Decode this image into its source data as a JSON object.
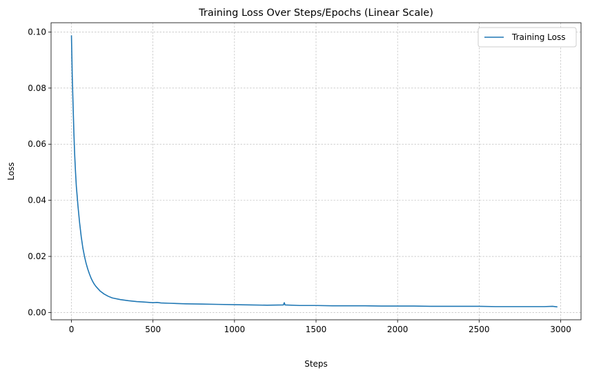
{
  "chart_data": {
    "type": "line",
    "title": "Training Loss Over Steps/Epochs (Linear Scale)",
    "xlabel": "Steps",
    "ylabel": "Loss",
    "xlim": [
      -125,
      3125
    ],
    "ylim": [
      -0.0026,
      0.1033
    ],
    "xticks": [
      0,
      500,
      1000,
      1500,
      2000,
      2500,
      3000
    ],
    "xtick_labels": [
      "0",
      "500",
      "1000",
      "1500",
      "2000",
      "2500",
      "3000"
    ],
    "yticks": [
      0.0,
      0.02,
      0.04,
      0.06,
      0.08,
      0.1
    ],
    "ytick_labels": [
      "0.00",
      "0.02",
      "0.04",
      "0.06",
      "0.08",
      "0.10"
    ],
    "grid": true,
    "legend_position": "top-right",
    "series": [
      {
        "name": "Training Loss",
        "color": "#1f77b4",
        "x": [
          0,
          5,
          10,
          15,
          20,
          25,
          30,
          40,
          50,
          60,
          70,
          80,
          90,
          100,
          110,
          120,
          130,
          140,
          150,
          175,
          200,
          225,
          250,
          300,
          350,
          400,
          450,
          500,
          525,
          550,
          600,
          700,
          800,
          900,
          1000,
          1100,
          1200,
          1300,
          1305,
          1310,
          1400,
          1500,
          1600,
          1700,
          1800,
          1900,
          2000,
          2100,
          2200,
          2300,
          2400,
          2500,
          2600,
          2700,
          2800,
          2900,
          2950,
          2980
        ],
        "y": [
          0.0988,
          0.084,
          0.074,
          0.064,
          0.056,
          0.05,
          0.045,
          0.038,
          0.032,
          0.027,
          0.023,
          0.02,
          0.0175,
          0.0155,
          0.0138,
          0.0123,
          0.0111,
          0.0101,
          0.0093,
          0.0077,
          0.0066,
          0.0058,
          0.0052,
          0.0046,
          0.0042,
          0.0039,
          0.0037,
          0.0035,
          0.0036,
          0.0034,
          0.0033,
          0.0031,
          0.003,
          0.0029,
          0.0028,
          0.0027,
          0.0026,
          0.0027,
          0.0035,
          0.0027,
          0.0025,
          0.0025,
          0.0024,
          0.0024,
          0.0024,
          0.0023,
          0.0023,
          0.0023,
          0.0022,
          0.0022,
          0.0022,
          0.0022,
          0.0021,
          0.0021,
          0.0021,
          0.0021,
          0.0022,
          0.002
        ]
      }
    ]
  }
}
